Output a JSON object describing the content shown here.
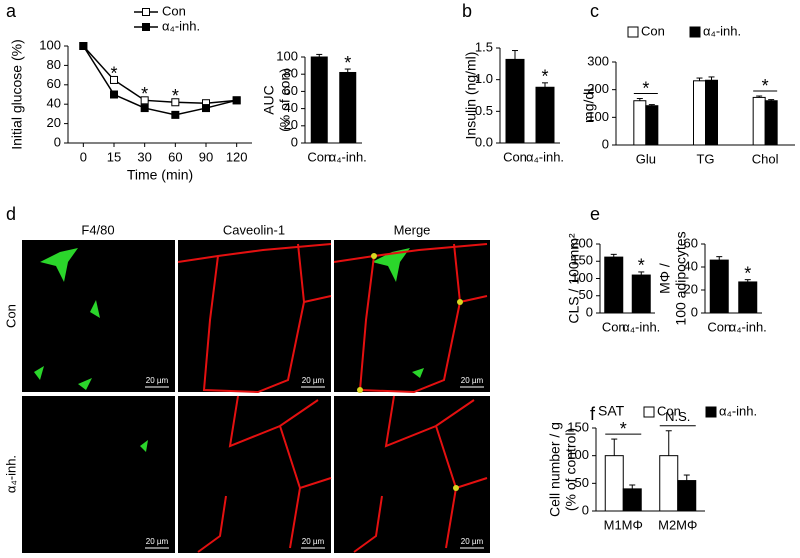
{
  "chart_data": [
    {
      "type": "line",
      "panel": "a",
      "ylabel": "Initial glucose (%)",
      "xlabel": "Time (min)",
      "categories": [
        "0",
        "15",
        "30",
        "60",
        "90",
        "120"
      ],
      "series": [
        {
          "name": "Con",
          "color": "#ffffff",
          "values": [
            100,
            65,
            44,
            42,
            41,
            44
          ]
        },
        {
          "name": "α₄-inh.",
          "color": "#000000",
          "values": [
            100,
            50,
            36,
            29,
            36,
            44
          ]
        }
      ],
      "ylim": [
        0,
        100
      ],
      "yticks": [
        0,
        20,
        40,
        60,
        80,
        100
      ],
      "legend": "top",
      "annotations": [
        {
          "label": "*",
          "x": "15"
        },
        {
          "label": "*",
          "x": "30"
        },
        {
          "label": "*",
          "x": "60"
        }
      ]
    },
    {
      "type": "bar",
      "ylabel": [
        "AUC",
        "(% of con)"
      ],
      "categories": [
        "Con",
        "α₄-inh."
      ],
      "values": [
        100,
        82
      ],
      "errors": [
        3,
        4
      ],
      "color": "#000000",
      "ylim": [
        0,
        100
      ],
      "yticks": [
        0,
        20,
        40,
        60,
        80,
        100
      ],
      "annotations": [
        {
          "label": "*",
          "x": "α₄-inh."
        }
      ]
    },
    {
      "type": "bar",
      "panel": "b",
      "ylabel": "Insulin (ng/ml)",
      "categories": [
        "Con",
        "α₄-inh."
      ],
      "values": [
        1.32,
        0.88
      ],
      "errors": [
        0.14,
        0.07
      ],
      "color": "#000000",
      "ylim": [
        0,
        1.5
      ],
      "yticks": [
        {
          "value": 0,
          "label": "0.0"
        },
        0.5,
        {
          "value": 1,
          "label": "1.0"
        },
        1.5
      ],
      "annotations": [
        {
          "label": "*",
          "x": "α₄-inh."
        }
      ]
    },
    {
      "type": "bar",
      "panel": "c",
      "ylabel": "mg/dL",
      "categories": [
        "Glu",
        "TG",
        "Chol"
      ],
      "series": [
        {
          "name": "Con",
          "color": "#ffffff",
          "values": [
            160,
            232,
            172
          ],
          "errors": [
            8,
            10,
            5
          ]
        },
        {
          "name": "α₄-inh.",
          "color": "#000000",
          "values": [
            142,
            234,
            160
          ],
          "errors": [
            4,
            12,
            4
          ]
        }
      ],
      "ylim": [
        0,
        300
      ],
      "yticks": [
        0,
        100,
        200,
        300
      ],
      "legend": "top",
      "annotations": [
        {
          "label": "*",
          "x": "Glu"
        },
        {
          "label": "*",
          "x": "Chol"
        }
      ]
    },
    {
      "type": "bar",
      "panel": "e",
      "ylabel": "CLS / 100mm²",
      "categories": [
        "Con",
        "α₄-inh."
      ],
      "values": [
        162,
        110
      ],
      "errors": [
        8,
        9
      ],
      "color": "#000000",
      "ylim": [
        0,
        200
      ],
      "yticks": [
        0,
        50,
        100,
        150,
        200
      ],
      "annotations": [
        {
          "label": "*",
          "x": "α₄-inh."
        }
      ]
    },
    {
      "type": "bar",
      "ylabel": [
        "MΦ /",
        "100 adipocytes"
      ],
      "categories": [
        "Con",
        "α₄-inh."
      ],
      "values": [
        46,
        27
      ],
      "errors": [
        3,
        2
      ],
      "color": "#000000",
      "ylim": [
        0,
        60
      ],
      "yticks": [
        0,
        20,
        40,
        60
      ],
      "annotations": [
        {
          "label": "*",
          "x": "α₄-inh."
        }
      ]
    },
    {
      "type": "bar",
      "panel": "f",
      "title": "SAT",
      "ylabel": [
        "Cell number / g",
        "(% of control)"
      ],
      "categories": [
        "M1MΦ",
        "M2MΦ"
      ],
      "series": [
        {
          "name": "Con",
          "color": "#ffffff",
          "values": [
            100,
            100
          ],
          "errors": [
            30,
            45
          ]
        },
        {
          "name": "α₄-inh.",
          "color": "#000000",
          "values": [
            40,
            55
          ],
          "errors": [
            7,
            10
          ]
        }
      ],
      "ylim": [
        0,
        150
      ],
      "yticks": [
        0,
        50,
        100,
        150
      ],
      "legend": "top",
      "annotations": [
        {
          "label": "*",
          "x": "M1MΦ"
        },
        {
          "label": "N.S.",
          "x": "M2MΦ"
        }
      ]
    }
  ],
  "microscopy": {
    "panel": "d",
    "columns": [
      "F4/80",
      "Caveolin-1",
      "Merge"
    ],
    "rows": [
      "Con",
      "α₄-inh."
    ],
    "scale_bar": "20 µm"
  }
}
